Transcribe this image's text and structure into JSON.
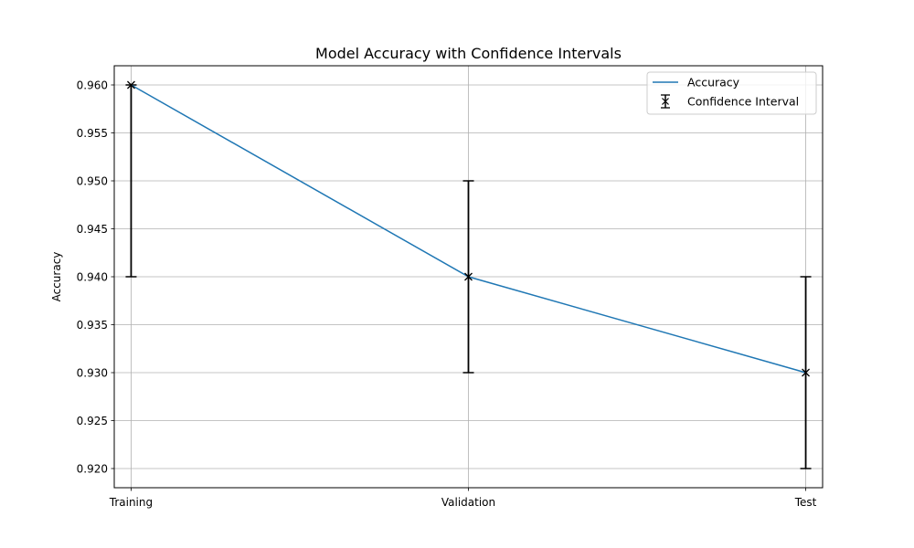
{
  "chart_data": {
    "type": "line",
    "title": "Model Accuracy with Confidence Intervals",
    "xlabel": "",
    "ylabel": "Accuracy",
    "categories": [
      "Training",
      "Validation",
      "Test"
    ],
    "series": [
      {
        "name": "Accuracy",
        "values": [
          0.96,
          0.94,
          0.93
        ],
        "color": "#1f77b4"
      }
    ],
    "error_bars": {
      "name": "Confidence Interval",
      "lower": [
        0.94,
        0.93,
        0.92
      ],
      "upper": [
        0.96,
        0.95,
        0.94
      ],
      "color": "#000000"
    },
    "yticks": [
      "0.920",
      "0.925",
      "0.930",
      "0.935",
      "0.940",
      "0.945",
      "0.950",
      "0.955",
      "0.960"
    ],
    "ylim": [
      0.918,
      0.962
    ],
    "grid": true,
    "legend_position": "top-right"
  }
}
